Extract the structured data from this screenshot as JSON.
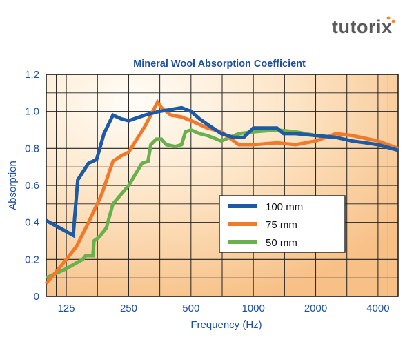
{
  "brand": {
    "logo_text": "tutorix",
    "accent": "#f28a2e",
    "text_color": "#5a5a5a"
  },
  "chart_data": {
    "type": "line",
    "title": "Mineral Wool Absorption Coefficient",
    "xlabel": "Frequency (Hz)",
    "ylabel": "Absorption",
    "x_scale": "log",
    "xlim": [
      100,
      5000
    ],
    "ylim": [
      0,
      1.2
    ],
    "x_ticks": [
      125,
      250,
      500,
      1000,
      2000,
      4000
    ],
    "x_tick_labels": [
      "125",
      "250",
      "500",
      "1000",
      "2000",
      "4000"
    ],
    "y_ticks": [
      0,
      0.2,
      0.4,
      0.6,
      0.8,
      1.0,
      1.2
    ],
    "y_tick_labels": [
      "0",
      "0.2",
      "0.4",
      "0.6",
      "0.8",
      "1.0",
      "1.2"
    ],
    "grid": true,
    "legend_position": "center-right",
    "colors": {
      "axis_text": "#1f4fa0",
      "grid": "#222222",
      "bg_light": "#fffdf8",
      "bg_warm": "#f8c894"
    },
    "series": [
      {
        "name": "100 mm",
        "color": "#1c5aa6",
        "x": [
          100,
          135,
          142,
          160,
          175,
          190,
          210,
          230,
          250,
          300,
          350,
          400,
          450,
          500,
          550,
          600,
          700,
          800,
          900,
          1000,
          1100,
          1300,
          1400,
          1600,
          2000,
          2500,
          3000,
          3500,
          4000,
          5000
        ],
        "y": [
          0.41,
          0.33,
          0.63,
          0.72,
          0.74,
          0.88,
          0.98,
          0.96,
          0.95,
          0.98,
          1.0,
          1.01,
          1.02,
          1.0,
          0.96,
          0.93,
          0.88,
          0.86,
          0.86,
          0.91,
          0.91,
          0.91,
          0.88,
          0.88,
          0.87,
          0.86,
          0.84,
          0.83,
          0.82,
          0.79
        ]
      },
      {
        "name": "75 mm",
        "color": "#f07a2a",
        "x": [
          100,
          115,
          125,
          140,
          160,
          185,
          210,
          230,
          250,
          300,
          345,
          360,
          400,
          450,
          500,
          600,
          700,
          850,
          1000,
          1300,
          1600,
          2000,
          2500,
          3000,
          4000,
          5000
        ],
        "y": [
          0.07,
          0.15,
          0.2,
          0.27,
          0.4,
          0.55,
          0.73,
          0.76,
          0.78,
          0.92,
          1.05,
          1.02,
          0.98,
          0.97,
          0.95,
          0.91,
          0.89,
          0.82,
          0.82,
          0.83,
          0.82,
          0.84,
          0.88,
          0.87,
          0.84,
          0.8
        ]
      },
      {
        "name": "50 mm",
        "color": "#6ab04c",
        "x": [
          100,
          125,
          150,
          155,
          168,
          170,
          180,
          195,
          210,
          250,
          290,
          310,
          320,
          340,
          360,
          380,
          420,
          450,
          470,
          500,
          550,
          600,
          700,
          850,
          1000,
          1300,
          1600,
          2000,
          2500
        ],
        "y": [
          0.1,
          0.15,
          0.2,
          0.22,
          0.22,
          0.3,
          0.32,
          0.37,
          0.5,
          0.6,
          0.72,
          0.73,
          0.82,
          0.85,
          0.85,
          0.82,
          0.81,
          0.82,
          0.89,
          0.9,
          0.88,
          0.87,
          0.84,
          0.88,
          0.89,
          0.9,
          0.89,
          0.87,
          0.86
        ]
      }
    ]
  }
}
